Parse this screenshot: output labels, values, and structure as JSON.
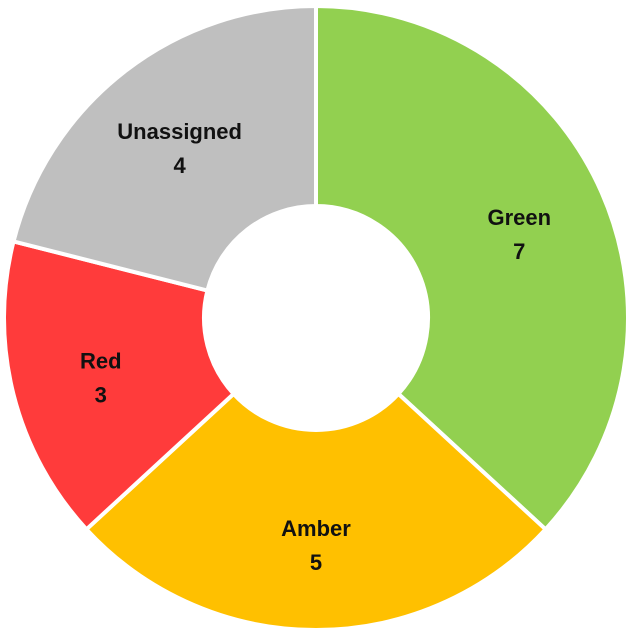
{
  "chart_data": {
    "type": "pie",
    "variant": "donut",
    "title": "",
    "slices": [
      {
        "label": "Green",
        "value": 7,
        "color": "#92d050"
      },
      {
        "label": "Amber",
        "value": 5,
        "color": "#ffc000"
      },
      {
        "label": "Red",
        "value": 3,
        "color": "#ff3b3b"
      },
      {
        "label": "Unassigned",
        "value": 4,
        "color": "#bfbfbf"
      }
    ],
    "start_angle_deg": 0,
    "direction": "clockwise",
    "legend": "none",
    "data_labels": "category and value inside slice"
  }
}
